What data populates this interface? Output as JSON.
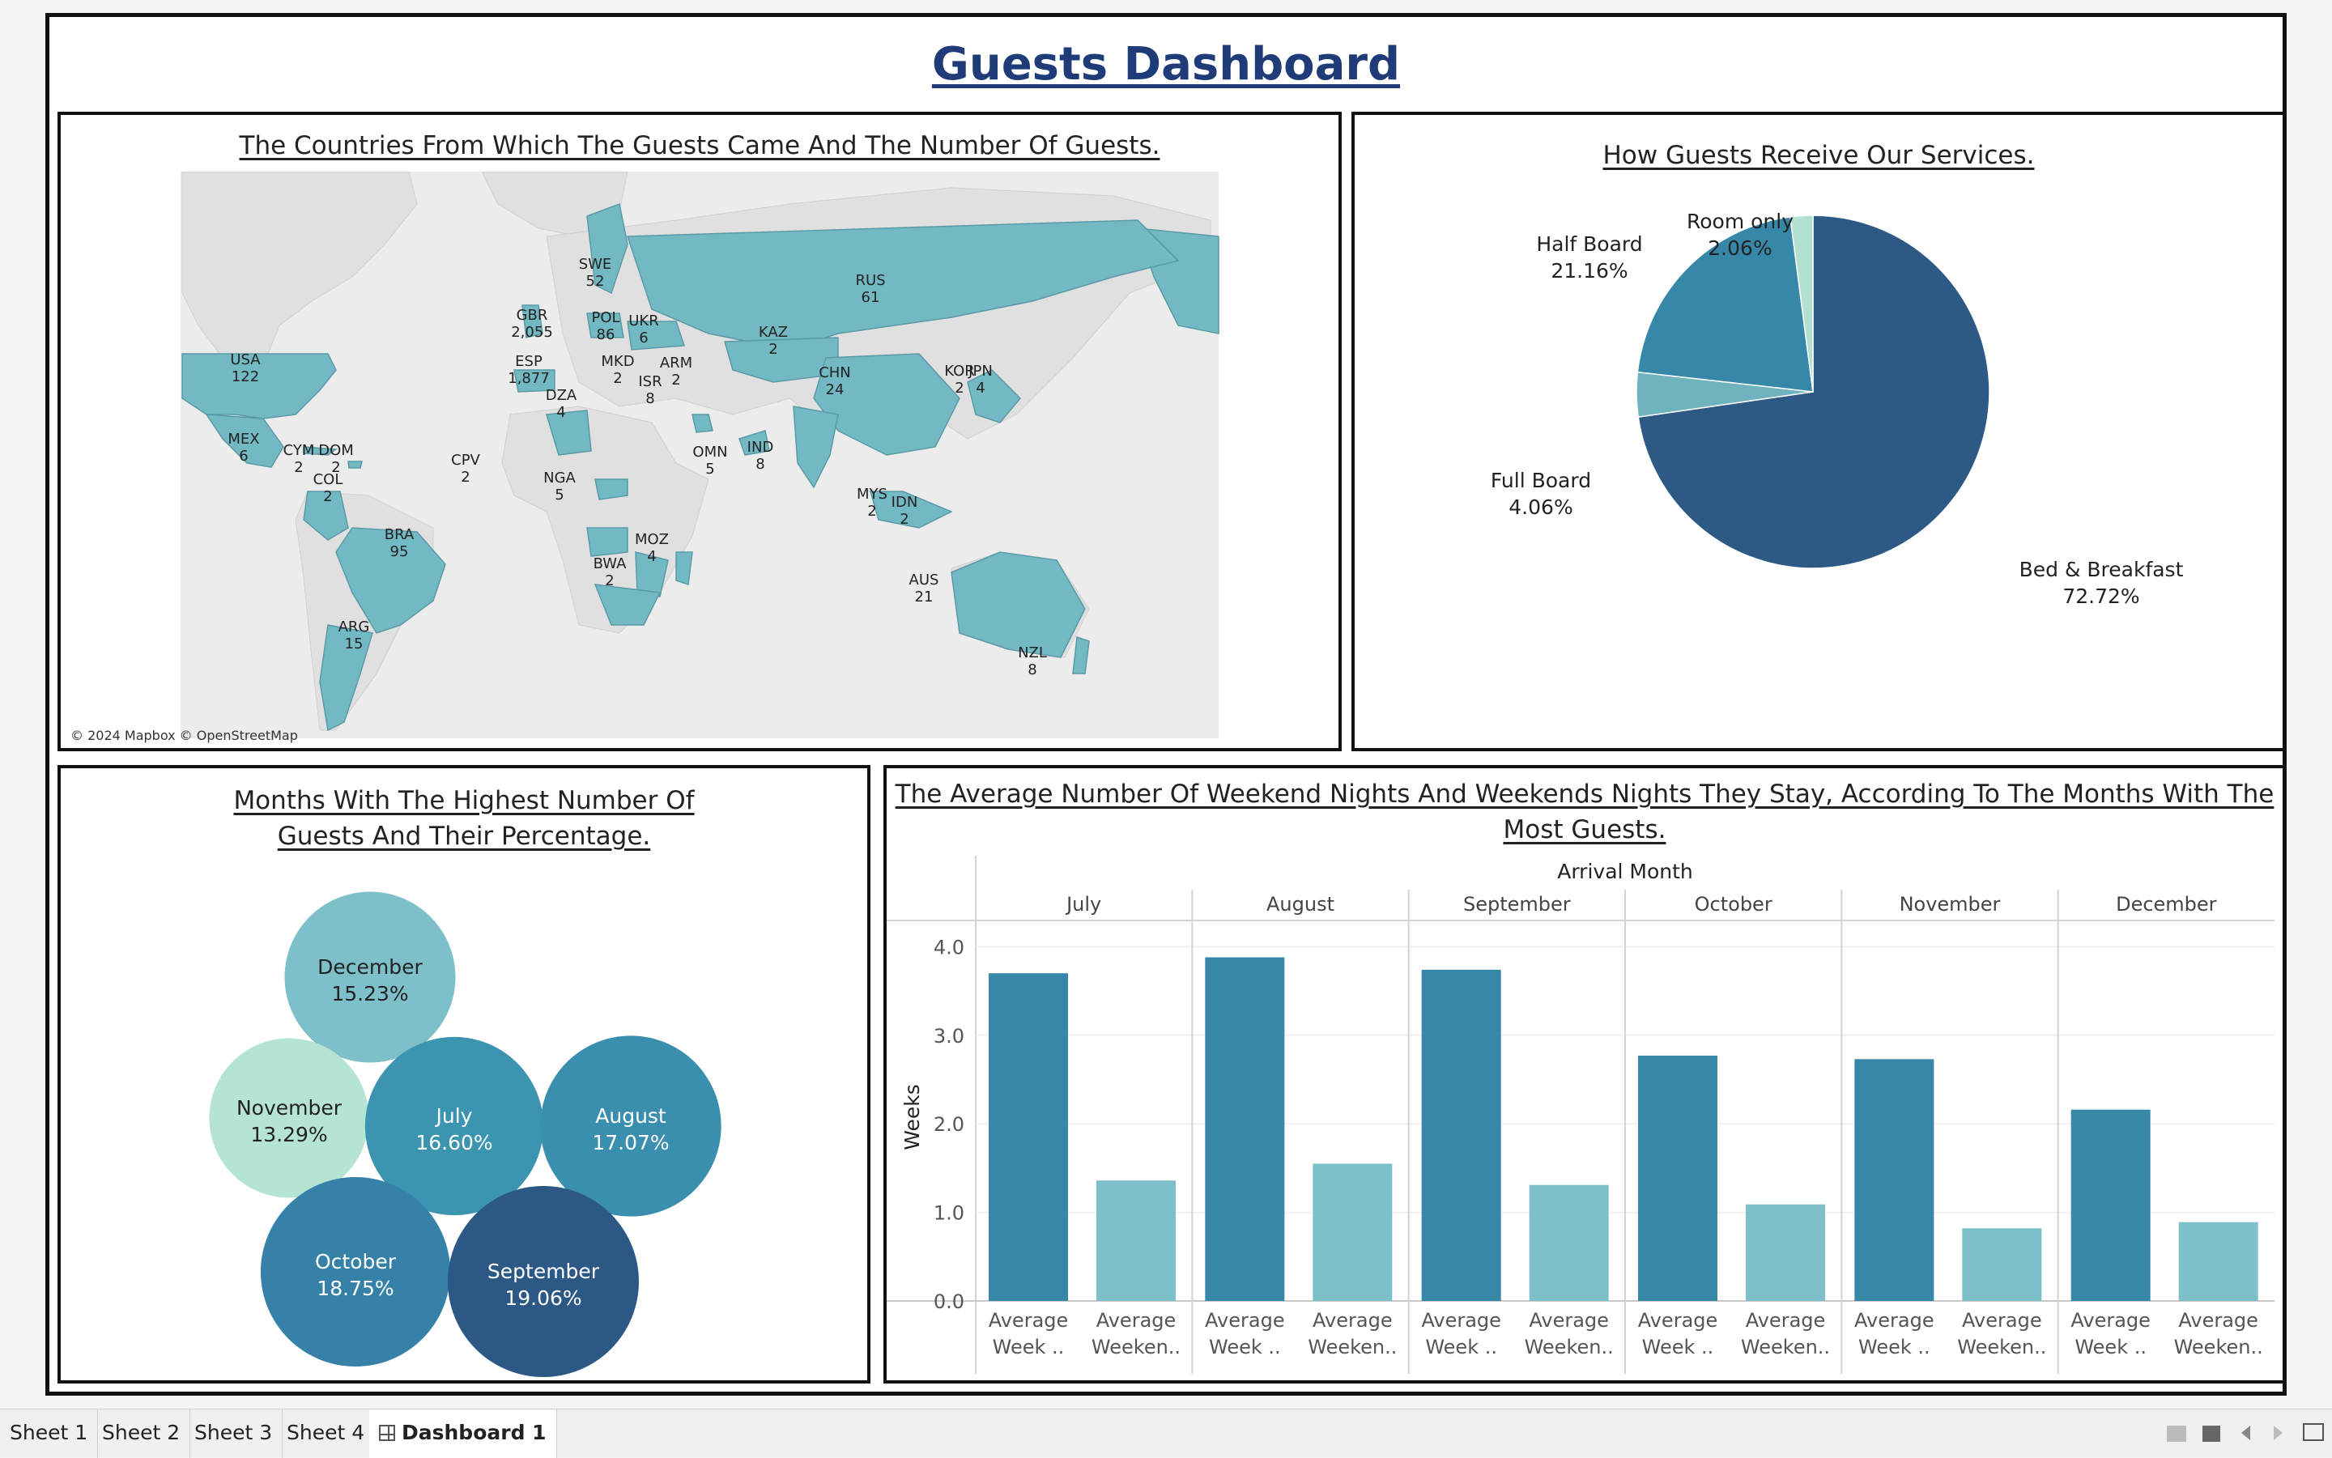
{
  "dashboard": {
    "title": "Guests Dashboard"
  },
  "map_panel": {
    "title": "The Countries From Which The Guests Came And The Number Of Guests.",
    "attribution": "© 2024 Mapbox © OpenStreetMap",
    "labels": [
      {
        "code": "RUS",
        "value": "61"
      },
      {
        "code": "SWE",
        "value": "52"
      },
      {
        "code": "GBR",
        "value": "2,055"
      },
      {
        "code": "POL",
        "value": "86"
      },
      {
        "code": "UKR",
        "value": "6"
      },
      {
        "code": "KAZ",
        "value": "2"
      },
      {
        "code": "ESP",
        "value": "1,877"
      },
      {
        "code": "MKD",
        "value": "2"
      },
      {
        "code": "ARM",
        "value": "2"
      },
      {
        "code": "USA",
        "value": "122"
      },
      {
        "code": "ISR",
        "value": "8"
      },
      {
        "code": "CHN",
        "value": "24"
      },
      {
        "code": "KOR",
        "value": "2"
      },
      {
        "code": "JPN",
        "value": "4"
      },
      {
        "code": "DZA",
        "value": "4"
      },
      {
        "code": "MEX",
        "value": "6"
      },
      {
        "code": "CYM",
        "value": "2"
      },
      {
        "code": "DOM",
        "value": "2"
      },
      {
        "code": "CPV",
        "value": "2"
      },
      {
        "code": "OMN",
        "value": "5"
      },
      {
        "code": "IND",
        "value": "8"
      },
      {
        "code": "NGA",
        "value": "5"
      },
      {
        "code": "COL",
        "value": "2"
      },
      {
        "code": "MYS",
        "value": "2"
      },
      {
        "code": "IDN",
        "value": "2"
      },
      {
        "code": "BRA",
        "value": "95"
      },
      {
        "code": "MOZ",
        "value": "4"
      },
      {
        "code": "BWA",
        "value": "2"
      },
      {
        "code": "AUS",
        "value": "21"
      },
      {
        "code": "ARG",
        "value": "15"
      },
      {
        "code": "NZL",
        "value": "8"
      }
    ],
    "colors": {
      "highlight": "#73b9c4",
      "base": "#e3e3e3"
    }
  },
  "pie_panel": {
    "title": "How Guests Receive Our Services."
  },
  "bubble_panel": {
    "title_line1": "Months With The Highest Number Of",
    "title_line2": "Guests And Their Percentage."
  },
  "bar_panel": {
    "title_line1": "The Average Number Of Weekend Nights And Weekends Nights They Stay, According To The Months With The",
    "title_line2": "Most Guests.",
    "header": "Arrival Month",
    "y_label": "Weeks",
    "bar_labels": [
      [
        "Average",
        "Week .."
      ],
      [
        "Average",
        "Weeken.."
      ]
    ]
  },
  "chart_data": [
    {
      "type": "pie",
      "title": "How Guests Receive Our Services.",
      "slices": [
        {
          "label": "Bed & Breakfast",
          "pct_text": "72.72%",
          "value": 72.72,
          "color": "#2d5985"
        },
        {
          "label": "Full Board",
          "pct_text": "4.06%",
          "value": 4.06,
          "color": "#6fb3bf"
        },
        {
          "label": "Half Board",
          "pct_text": "21.16%",
          "value": 21.16,
          "color": "#3787a9"
        },
        {
          "label": "Room only",
          "pct_text": "2.06%",
          "value": 2.06,
          "color": "#b2e1d2"
        }
      ]
    },
    {
      "type": "bubble",
      "title": "Months With The Highest Number Of Guests And Their Percentage.",
      "bubbles": [
        {
          "label": "December",
          "pct_text": "15.23%",
          "value": 15.23,
          "color": "#7ec0c9",
          "text_color": "#222"
        },
        {
          "label": "November",
          "pct_text": "13.29%",
          "value": 13.29,
          "color": "#b5e3d4",
          "text_color": "#222"
        },
        {
          "label": "July",
          "pct_text": "16.60%",
          "value": 16.6,
          "color": "#3b95b0",
          "text_color": "#fff"
        },
        {
          "label": "August",
          "pct_text": "17.07%",
          "value": 17.07,
          "color": "#3a8fae",
          "text_color": "#fff"
        },
        {
          "label": "October",
          "pct_text": "18.75%",
          "value": 18.75,
          "color": "#3581a8",
          "text_color": "#fff"
        },
        {
          "label": "September",
          "pct_text": "19.06%",
          "value": 19.06,
          "color": "#2c5885",
          "text_color": "#fff"
        }
      ]
    },
    {
      "type": "bar",
      "title": "The Average Number Of Weekend Nights And Weekends Nights They Stay, According To The Months With The Most Guests.",
      "categories": [
        "July",
        "August",
        "September",
        "October",
        "November",
        "December"
      ],
      "series": [
        {
          "name": "Average Week ..",
          "color": "#3787a9",
          "values": [
            3.7,
            3.88,
            3.74,
            2.77,
            2.73,
            2.16
          ]
        },
        {
          "name": "Average Weeken..",
          "color": "#7ec0c9",
          "values": [
            1.36,
            1.55,
            1.31,
            1.09,
            0.82,
            0.89
          ]
        }
      ],
      "ylabel": "Weeks",
      "ylim": [
        0,
        4.15
      ],
      "yticks": [
        "0.0",
        "1.0",
        "2.0",
        "3.0",
        "4.0"
      ]
    }
  ]
}
